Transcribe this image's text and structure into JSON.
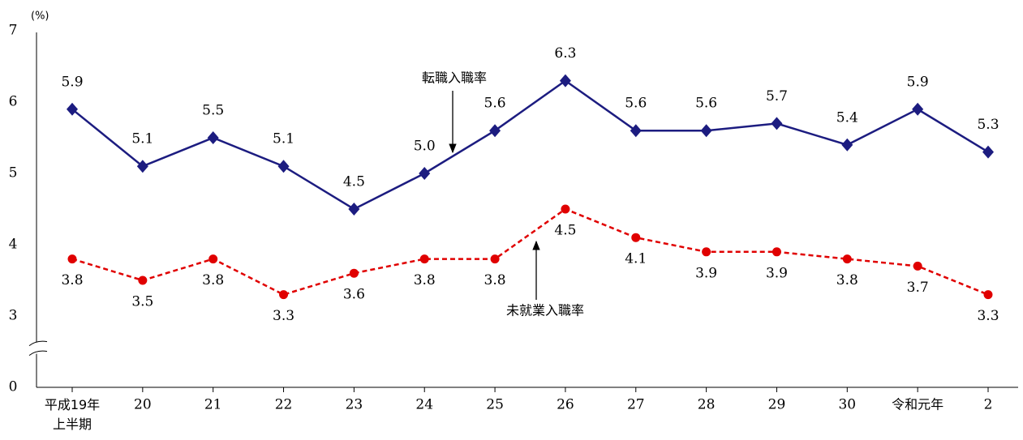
{
  "chart_data": {
    "type": "line",
    "unit_label": "(%)",
    "categories": [
      "平成19年\n上半期",
      "20",
      "21",
      "22",
      "23",
      "24",
      "25",
      "26",
      "27",
      "28",
      "29",
      "30",
      "令和元年",
      "2"
    ],
    "series": [
      {
        "name": "転職入職率",
        "color": "#1c1c80",
        "marker": "diamond",
        "dashed": false,
        "values": [
          5.9,
          5.1,
          5.5,
          5.1,
          4.5,
          5.0,
          5.6,
          6.3,
          5.6,
          5.6,
          5.7,
          5.4,
          5.9,
          5.3
        ],
        "value_labels": [
          "5.9",
          "5.1",
          "5.5",
          "5.1",
          "4.5",
          "5.0",
          "5.6",
          "6.3",
          "5.6",
          "5.6",
          "5.7",
          "5.4",
          "5.9",
          "5.3"
        ]
      },
      {
        "name": "未就業入職率",
        "color": "#e00000",
        "marker": "circle",
        "dashed": true,
        "values": [
          3.8,
          3.5,
          3.8,
          3.3,
          3.6,
          3.8,
          3.8,
          4.5,
          4.1,
          3.9,
          3.9,
          3.8,
          3.7,
          3.3
        ],
        "value_labels": [
          "3.8",
          "3.5",
          "3.8",
          "3.3",
          "3.6",
          "3.8",
          "3.8",
          "4.5",
          "4.1",
          "3.9",
          "3.9",
          "3.8",
          "3.7",
          "3.3"
        ]
      }
    ],
    "ylim": [
      0,
      7
    ],
    "yticks": [
      0,
      3,
      4,
      5,
      6,
      7
    ],
    "axis_break": true,
    "grid": false
  }
}
